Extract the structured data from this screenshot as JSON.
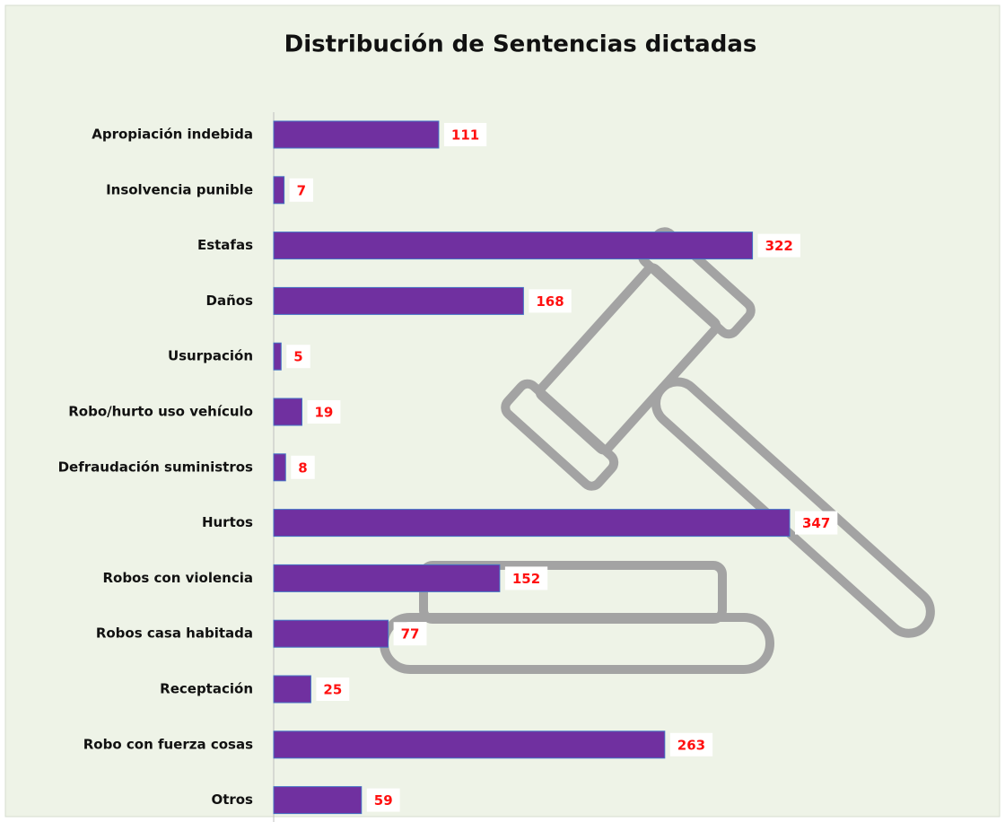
{
  "chart_data": {
    "type": "bar",
    "orientation": "horizontal",
    "title": "Distribución  de Sentencias dictadas",
    "categories": [
      "Apropiación indebida",
      "Insolvencia punible",
      "Estafas",
      "Daños",
      "Usurpación",
      "Robo/hurto uso vehículo",
      "Defraudación suministros",
      "Hurtos",
      "Robos con violencia",
      "Robos casa habitada",
      "Receptación",
      "Robo con fuerza cosas",
      "Otros"
    ],
    "values": [
      111,
      7,
      322,
      168,
      5,
      19,
      8,
      347,
      152,
      77,
      25,
      263,
      59
    ],
    "color": "#7030a0"
  }
}
